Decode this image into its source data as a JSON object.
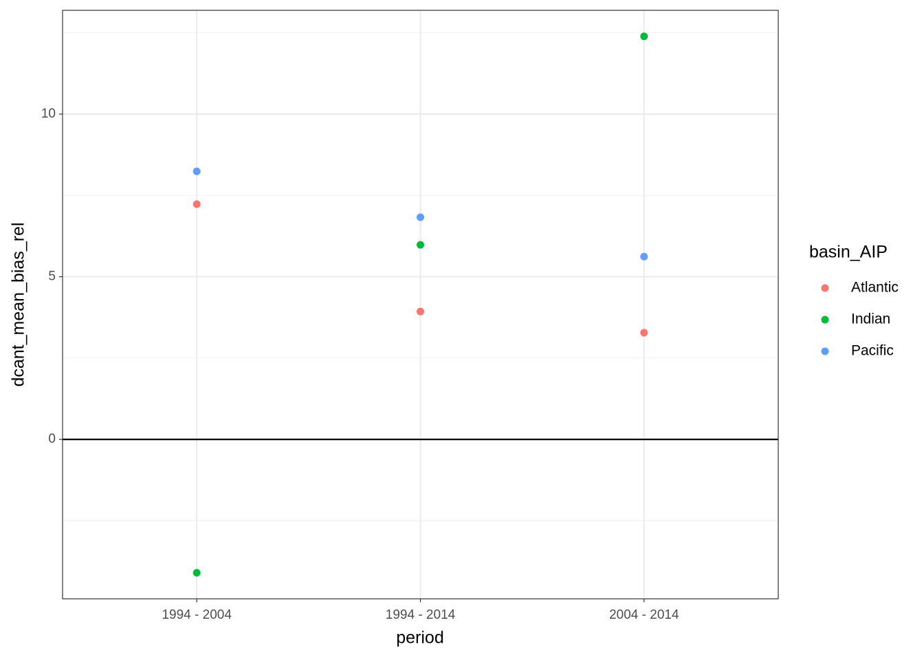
{
  "chart_data": {
    "type": "scatter",
    "x_label": "period",
    "y_label": "dcant_mean_bias_rel",
    "categories": [
      "1994 - 2004",
      "1994 - 2014",
      "2004 - 2014"
    ],
    "legend_title": "basin_AIP",
    "legend_position": "right",
    "series": [
      {
        "name": "Atlantic",
        "color": "#F8766D",
        "values": [
          7.23,
          3.93,
          3.28
        ]
      },
      {
        "name": "Indian",
        "color": "#00BA38",
        "values": [
          -4.1,
          5.98,
          12.39
        ]
      },
      {
        "name": "Pacific",
        "color": "#619CFF",
        "values": [
          8.24,
          6.83,
          5.62
        ]
      }
    ],
    "ylim": [
      -4.9,
      13.19
    ],
    "yticks": [
      0,
      5,
      10
    ],
    "y_minor_ticks": [
      -2.5,
      2.5,
      7.5,
      12.5
    ],
    "hline": 0,
    "grid": true
  }
}
